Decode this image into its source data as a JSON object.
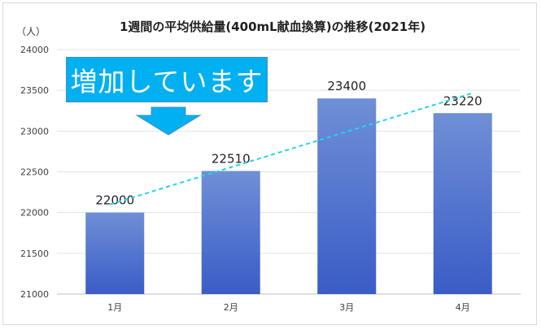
{
  "chart_data": {
    "type": "bar",
    "title": "1週間の平均供給量(400mL献血換算)の推移(2021年)",
    "unit_label": "（人）",
    "categories": [
      "1月",
      "2月",
      "3月",
      "4月"
    ],
    "values": [
      22000,
      22510,
      23400,
      23220
    ],
    "data_labels": [
      "22000",
      "22510",
      "23400",
      "23220"
    ],
    "ylim": [
      21000,
      24000
    ],
    "y_ticks": [
      "21000",
      "21500",
      "22000",
      "22500",
      "23000",
      "23500",
      "24000"
    ],
    "grid": true,
    "trendline": {
      "style": "dashed",
      "from_value": 22100,
      "to_value": 23460
    },
    "bar_color_top": "#6f8fd6",
    "bar_color_bottom": "#3a5cc6",
    "trend_color": "#22d3ee",
    "annotation": {
      "text": "増加しています",
      "background": "#00b0f0",
      "arrow_color": "#00b0f0"
    }
  }
}
